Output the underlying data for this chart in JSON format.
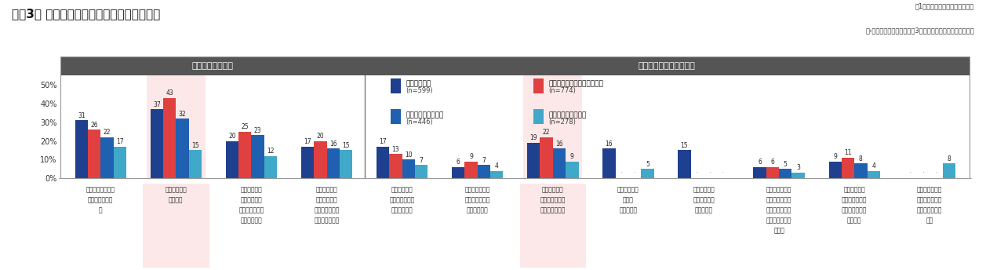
{
  "title": "＜嘦3＞ 観戦・鑑賞を促進する付加価値要素",
  "note_top": "。1年以内に参加経験ありベース",
  "note_bottom": "（›ファッションショーのみ3年以内に参加経験ありベース）",
  "section1_label": "会場での参加意向",
  "section2_label": "オンラインでの参加意向",
  "legend_labels": [
    "スポーツ観戦",
    "音楽会、コンサート・ライブ",
    "観劇、ミュージカル",
    "ファッションショー"
  ],
  "legend_ns": [
    "(n=599)",
    "(n=774)",
    "(n=446)",
    "(n=278)"
  ],
  "categories": [
    "プレミアムグッズ\nなどが付いてい\nる",
    "特別エリアで\n観られる",
    "来場者限定で\n選手や出演者\nとコミュニケー\nションできる",
    "来場後、選手\nや出演者から\n特別なメッセー\nジを受け取れる",
    "自分の友人・\n知人とライブ中\n継を観られる",
    "知らないファン\n同士でライブ中\n継を観られる",
    "自分の観たい\n角度のカメラを\n選んで観られる",
    "実況・解説の\n有無を\n選択できる",
    "自分の好きな\n解説者を選ん\nで観られる",
    "盛り上がるシー\nンなどで投げ銀\nなど課金アイテ\nムやコメントを\n送れる",
    "観戦・鑑賞者\n限定のグッズを\nオンラインで購\n入できる",
    "モデルが着用し\nていた服をオン\nラインで購入で\nきる"
  ],
  "values_sports": [
    31,
    37,
    20,
    17,
    17,
    6,
    19,
    16,
    15,
    6,
    9,
    null
  ],
  "values_music": [
    26,
    43,
    25,
    20,
    13,
    9,
    22,
    null,
    null,
    6,
    11,
    null
  ],
  "values_theater": [
    22,
    32,
    23,
    16,
    10,
    7,
    16,
    null,
    null,
    5,
    8,
    null
  ],
  "values_fashion": [
    17,
    15,
    12,
    15,
    7,
    4,
    9,
    5,
    null,
    3,
    4,
    8
  ],
  "colors": [
    "#1f3f8f",
    "#e04040",
    "#2060b0",
    "#40a8c8"
  ],
  "highlight_cols": [
    1,
    6
  ],
  "separator_after_col": 3,
  "ylim": [
    0,
    55
  ],
  "ytick_vals": [
    0,
    10,
    20,
    30,
    40,
    50
  ],
  "header_color": "#555555",
  "highlight_color": "#fce8e8"
}
